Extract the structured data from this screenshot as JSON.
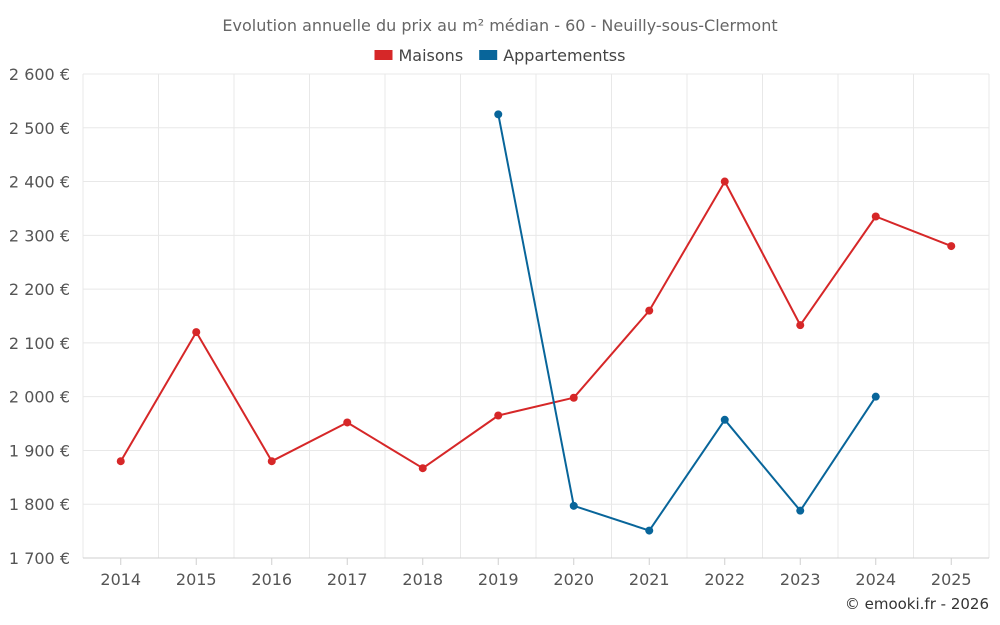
{
  "chart_data": {
    "type": "line",
    "title": "Evolution annuelle du prix au m² médian - 60 - Neuilly-sous-Clermont",
    "x": [
      "2014",
      "2015",
      "2016",
      "2017",
      "2018",
      "2019",
      "2020",
      "2021",
      "2022",
      "2023",
      "2024",
      "2025"
    ],
    "ylim": [
      1700,
      2600
    ],
    "yticks": [
      1700,
      1800,
      1900,
      2000,
      2100,
      2200,
      2300,
      2400,
      2500,
      2600
    ],
    "ytick_labels": [
      "1 700 €",
      "1 800 €",
      "1 900 €",
      "2 000 €",
      "2 100 €",
      "2 200 €",
      "2 300 €",
      "2 400 €",
      "2 500 €",
      "2 600 €"
    ],
    "xlabel": "",
    "ylabel": "",
    "grid": true,
    "legend_position": "top-center",
    "series": [
      {
        "name": "Maisons",
        "color": "#d62728",
        "values": [
          1880,
          2120,
          1880,
          1952,
          1867,
          1965,
          1998,
          2160,
          2400,
          2133,
          2335,
          2280
        ]
      },
      {
        "name": "Appartementss",
        "color": "#08659a",
        "values": [
          null,
          null,
          null,
          null,
          null,
          2525,
          1797,
          1751,
          1957,
          1788,
          2000,
          null
        ]
      }
    ]
  },
  "credit": "© emooki.fr - 2026"
}
